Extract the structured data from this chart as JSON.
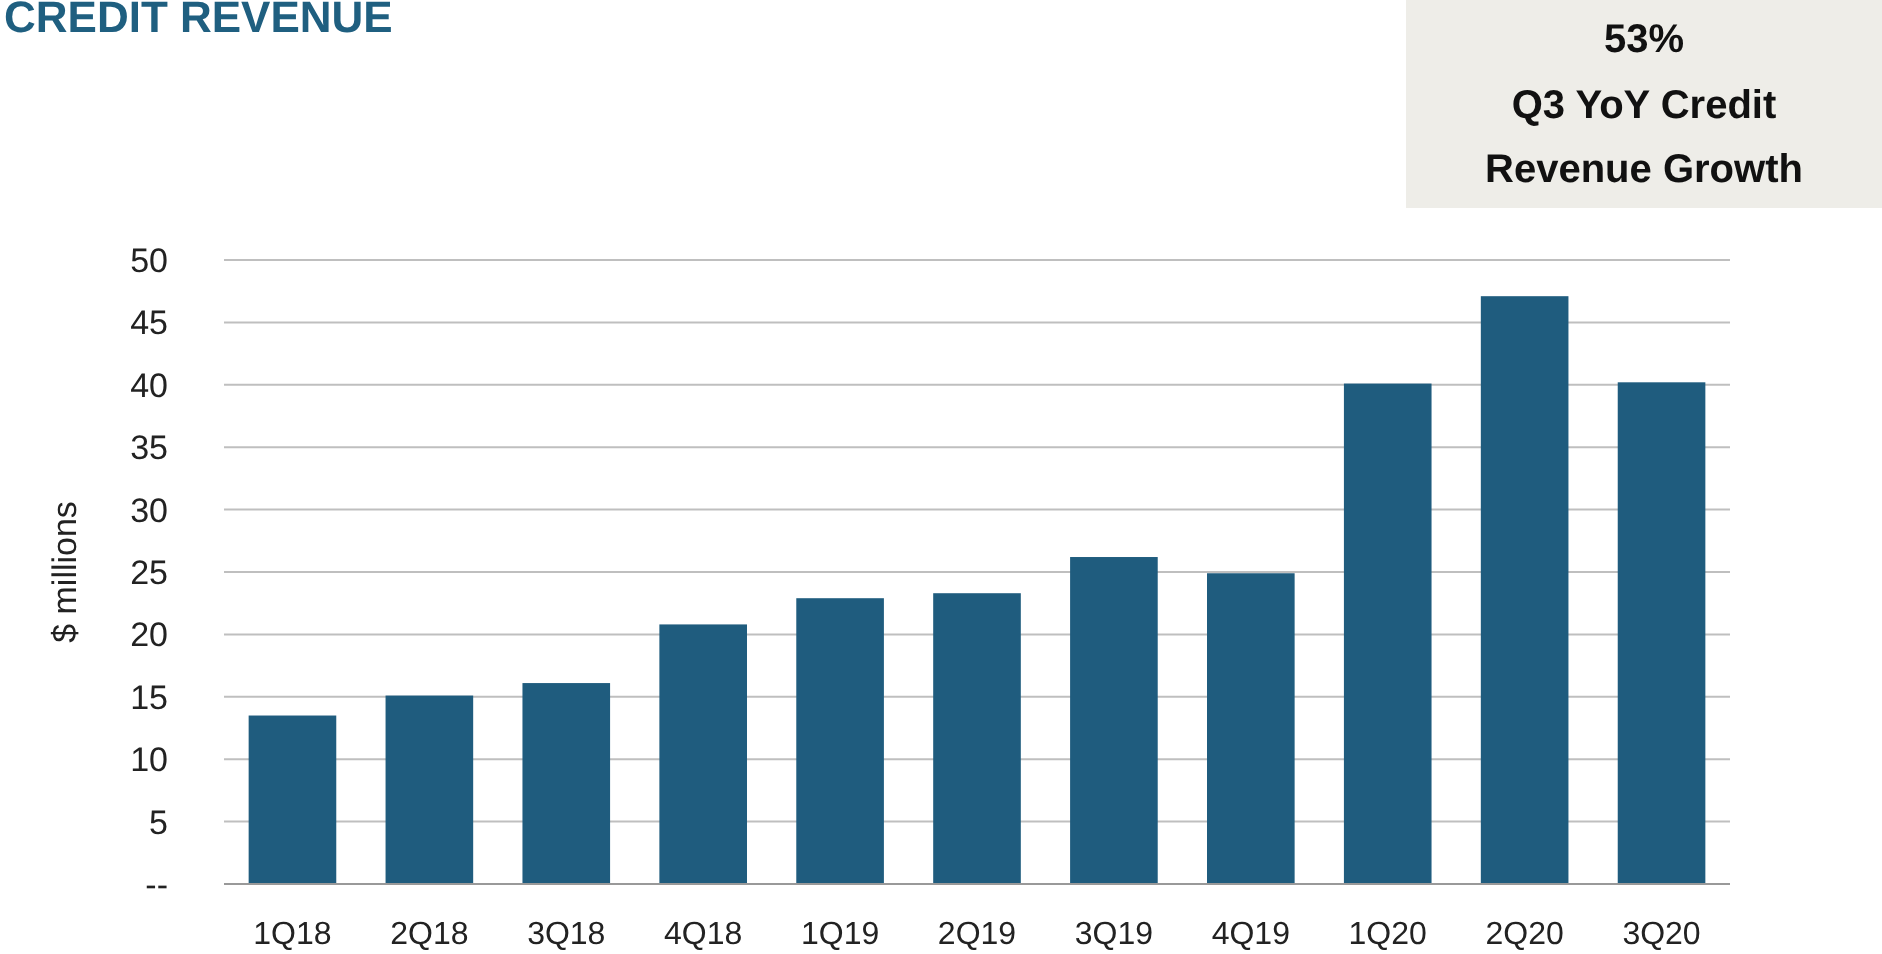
{
  "chart_data": {
    "type": "bar",
    "title": "CREDIT REVENUE",
    "ylabel": "$ millions",
    "annotations": [
      "53%",
      "Q3 YoY Credit Revenue Growth"
    ],
    "categories": [
      "1Q18",
      "2Q18",
      "3Q18",
      "4Q18",
      "1Q19",
      "2Q19",
      "3Q19",
      "4Q19",
      "1Q20",
      "2Q20",
      "3Q20"
    ],
    "values": [
      13.5,
      15.1,
      16.1,
      20.8,
      22.9,
      23.3,
      26.2,
      24.9,
      40.1,
      47.1,
      40.2
    ],
    "color": "#1f5c7e",
    "ylim": [
      0,
      50
    ],
    "yticks": [
      {
        "value": 0,
        "label": "--"
      },
      5,
      10,
      15,
      20,
      25,
      30,
      35,
      40,
      45,
      50
    ],
    "grid": "y"
  }
}
